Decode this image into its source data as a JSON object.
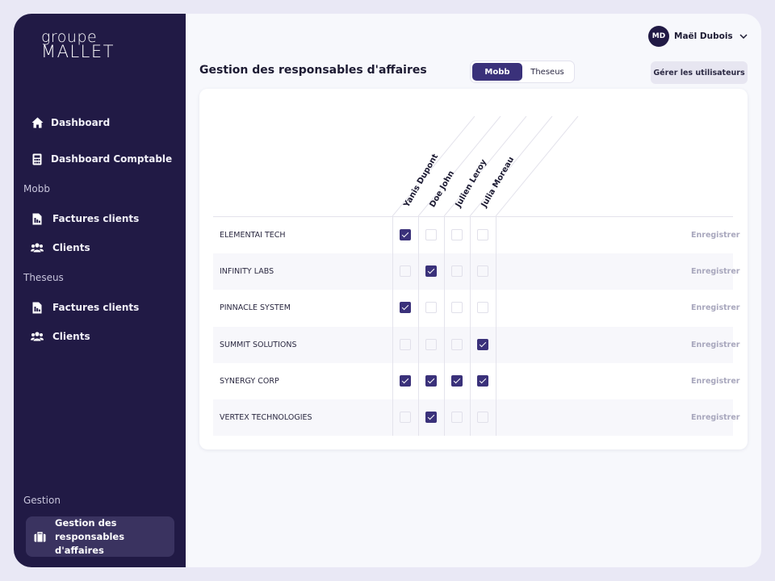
{
  "sidebar": {
    "logo": {
      "line1": "groupe",
      "line2": "MALLET"
    },
    "dashboard": "Dashboard",
    "dashboard_comptable": "Dashboard Comptable",
    "section_mobb": "Mobb",
    "mobb_factures": "Factures clients",
    "mobb_clients": "Clients",
    "section_theseus": "Theseus",
    "theseus_factures": "Factures clients",
    "theseus_clients": "Clients",
    "section_gestion": "Gestion",
    "gestion_item": "Gestion des responsables d'affaires"
  },
  "header": {
    "avatar_initials": "MD",
    "user_name": "Maël Dubois",
    "page_title": "Gestion des responsables d'affaires",
    "toggle": {
      "options": [
        "Mobb",
        "Theseus"
      ],
      "selected": "Mobb"
    },
    "manage_users": "Gérer les utilisateurs"
  },
  "table": {
    "columns": [
      "Yanis Dupont",
      "Doe John",
      "Julien Leroy",
      "Julia Moreau"
    ],
    "save_label": "Enregistrer",
    "rows": [
      {
        "name": "ELEMENTAI TECH",
        "checks": [
          true,
          false,
          false,
          false
        ]
      },
      {
        "name": "INFINITY LABS",
        "checks": [
          false,
          true,
          false,
          false
        ]
      },
      {
        "name": "PINNACLE SYSTEM",
        "checks": [
          true,
          false,
          false,
          false
        ]
      },
      {
        "name": "SUMMIT SOLUTIONS",
        "checks": [
          false,
          false,
          false,
          true
        ]
      },
      {
        "name": "SYNERGY CORP",
        "checks": [
          true,
          true,
          true,
          true
        ]
      },
      {
        "name": "VERTEX TECHNOLOGIES",
        "checks": [
          false,
          true,
          false,
          false
        ]
      }
    ]
  },
  "icons": [
    "home-icon",
    "calculator-icon",
    "invoice-icon",
    "users-icon",
    "briefcase-icon",
    "chevron-down-icon"
  ],
  "colors": {
    "sidebar_bg": "#211a45",
    "accent": "#3a317a",
    "page_bg": "#f7f8fc"
  }
}
